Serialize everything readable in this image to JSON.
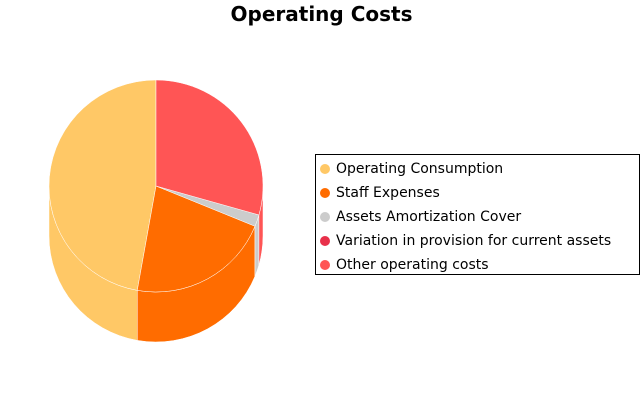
{
  "chart_data": {
    "type": "pie",
    "title": "Operating Costs",
    "legend_position": "right",
    "slices": [
      {
        "label": "Operating Consumption",
        "value": 47.2,
        "color": "#FFC866"
      },
      {
        "label": "Staff Expenses",
        "value": 21.6,
        "color": "#FF6C00"
      },
      {
        "label": "Assets Amortization Cover",
        "value": 1.8,
        "color": "#CCCCCC"
      },
      {
        "label": "Variation in provision for current assets",
        "value": 0.0,
        "color": "#E8304A"
      },
      {
        "label": "Other operating costs",
        "value": 29.4,
        "color": "#FF5555"
      }
    ]
  }
}
